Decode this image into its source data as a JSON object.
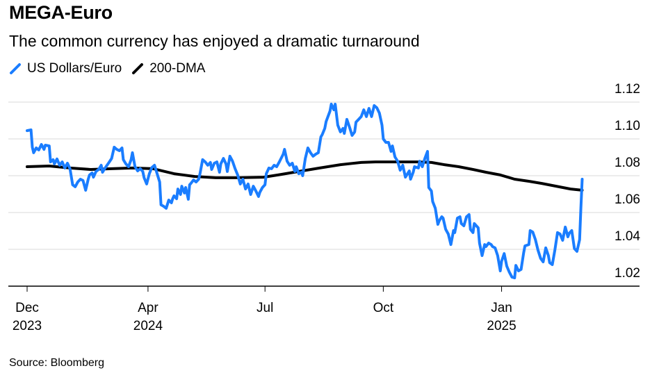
{
  "header": {
    "title": "MEGA-Euro",
    "subtitle": "The common currency has enjoyed a dramatic turnaround"
  },
  "legend": [
    {
      "label": "US Dollars/Euro",
      "icon": "line-swatch-icon",
      "color": "#1a7dff"
    },
    {
      "label": "200-DMA",
      "icon": "line-swatch-icon",
      "color": "#000000"
    }
  ],
  "footer": {
    "source": "Source: Bloomberg"
  },
  "chart_data": {
    "type": "line",
    "title": "MEGA-Euro",
    "subtitle": "The common currency has enjoyed a dramatic turnaround",
    "xlabel": "",
    "ylabel": "",
    "x_unit": "days since 2023-12-01 (approx.)",
    "ylim": [
      1.02,
      1.12
    ],
    "yticks": [
      "1.02",
      "1.04",
      "1.06",
      "1.08",
      "1.10",
      "1.12"
    ],
    "ytick_values": [
      1.02,
      1.04,
      1.06,
      1.08,
      1.1,
      1.12
    ],
    "xlim": [
      -14,
      470
    ],
    "xticks": [
      {
        "day": 0,
        "line1": "Dec",
        "line2": "2023"
      },
      {
        "day": 93,
        "line1": "Apr",
        "line2": "2024"
      },
      {
        "day": 183,
        "line1": "Jul",
        "line2": ""
      },
      {
        "day": 274,
        "line1": "Oct",
        "line2": ""
      },
      {
        "day": 365,
        "line1": "Jan",
        "line2": "2025"
      }
    ],
    "grid": true,
    "legend_position": "top-left",
    "source": "Bloomberg",
    "series": [
      {
        "name": "US Dollars/Euro",
        "color": "#1a7dff",
        "points": [
          [
            0,
            1.1045
          ],
          [
            3,
            1.1049
          ],
          [
            4,
            1.0955
          ],
          [
            5,
            1.0925
          ],
          [
            7,
            1.0951
          ],
          [
            9,
            1.094
          ],
          [
            11,
            1.097
          ],
          [
            13,
            1.0943
          ],
          [
            14,
            1.0966
          ],
          [
            17,
            1.0962
          ],
          [
            18,
            1.0875
          ],
          [
            20,
            1.0887
          ],
          [
            21,
            1.0864
          ],
          [
            23,
            1.0891
          ],
          [
            25,
            1.0857
          ],
          [
            27,
            1.0875
          ],
          [
            29,
            1.0842
          ],
          [
            31,
            1.0868
          ],
          [
            33,
            1.0838
          ],
          [
            35,
            1.0751
          ],
          [
            37,
            1.074
          ],
          [
            39,
            1.0766
          ],
          [
            41,
            1.0781
          ],
          [
            43,
            1.0774
          ],
          [
            45,
            1.0721
          ],
          [
            47,
            1.0781
          ],
          [
            48,
            1.0804
          ],
          [
            50,
            1.0815
          ],
          [
            51,
            1.0792
          ],
          [
            53,
            1.0823
          ],
          [
            55,
            1.0834
          ],
          [
            57,
            1.0857
          ],
          [
            58,
            1.0819
          ],
          [
            60,
            1.0842
          ],
          [
            63,
            1.0872
          ],
          [
            65,
            1.0894
          ],
          [
            67,
            1.0955
          ],
          [
            69,
            1.0943
          ],
          [
            71,
            1.0936
          ],
          [
            73,
            1.0951
          ],
          [
            74,
            1.0887
          ],
          [
            76,
            1.0864
          ],
          [
            78,
            1.0849
          ],
          [
            80,
            1.0887
          ],
          [
            81,
            1.0925
          ],
          [
            83,
            1.0849
          ],
          [
            85,
            1.0826
          ],
          [
            87,
            1.0838
          ],
          [
            89,
            1.0823
          ],
          [
            90,
            1.0789
          ],
          [
            92,
            1.0755
          ],
          [
            94,
            1.0811
          ],
          [
            96,
            1.0845
          ],
          [
            98,
            1.0857
          ],
          [
            100,
            1.0811
          ],
          [
            102,
            1.0766
          ],
          [
            103,
            1.0642
          ],
          [
            105,
            1.0634
          ],
          [
            107,
            1.0623
          ],
          [
            109,
            1.0668
          ],
          [
            111,
            1.0653
          ],
          [
            112,
            1.0675
          ],
          [
            113,
            1.0691
          ],
          [
            115,
            1.0675
          ],
          [
            116,
            1.0728
          ],
          [
            118,
            1.0698
          ],
          [
            119,
            1.0743
          ],
          [
            121,
            1.0706
          ],
          [
            122,
            1.0736
          ],
          [
            124,
            1.0672
          ],
          [
            125,
            1.0751
          ],
          [
            126,
            1.0758
          ],
          [
            128,
            1.0777
          ],
          [
            130,
            1.0766
          ],
          [
            132,
            1.0781
          ],
          [
            133,
            1.0811
          ],
          [
            135,
            1.0887
          ],
          [
            137,
            1.0875
          ],
          [
            139,
            1.0857
          ],
          [
            141,
            1.0872
          ],
          [
            142,
            1.0834
          ],
          [
            144,
            1.0868
          ],
          [
            146,
            1.0875
          ],
          [
            148,
            1.0819
          ],
          [
            149,
            1.0864
          ],
          [
            151,
            1.0894
          ],
          [
            153,
            1.0864
          ],
          [
            154,
            1.0823
          ],
          [
            156,
            1.0906
          ],
          [
            158,
            1.0879
          ],
          [
            160,
            1.0838
          ],
          [
            162,
            1.0804
          ],
          [
            164,
            1.0755
          ],
          [
            166,
            1.0781
          ],
          [
            168,
            1.0728
          ],
          [
            170,
            1.0755
          ],
          [
            172,
            1.0698
          ],
          [
            174,
            1.0743
          ],
          [
            176,
            1.0717
          ],
          [
            178,
            1.0687
          ],
          [
            179,
            1.0709
          ],
          [
            181,
            1.0736
          ],
          [
            183,
            1.0751
          ],
          [
            184,
            1.0811
          ],
          [
            186,
            1.0842
          ],
          [
            188,
            1.0838
          ],
          [
            190,
            1.0857
          ],
          [
            192,
            1.0849
          ],
          [
            194,
            1.0875
          ],
          [
            197,
            1.0917
          ],
          [
            198,
            1.0943
          ],
          [
            200,
            1.0879
          ],
          [
            202,
            1.0857
          ],
          [
            204,
            1.0868
          ],
          [
            206,
            1.0823
          ],
          [
            207,
            1.0849
          ],
          [
            209,
            1.0811
          ],
          [
            211,
            1.0819
          ],
          [
            212,
            1.08
          ],
          [
            214,
            1.0894
          ],
          [
            216,
            1.0951
          ],
          [
            218,
            1.0925
          ],
          [
            220,
            1.0906
          ],
          [
            222,
            1.0917
          ],
          [
            224,
            1.0925
          ],
          [
            226,
            1.1011
          ],
          [
            227,
            1.1023
          ],
          [
            229,
            1.1057
          ],
          [
            230,
            1.1094
          ],
          [
            233,
            1.1151
          ],
          [
            234,
            1.1189
          ],
          [
            236,
            1.1158
          ],
          [
            237,
            1.1189
          ],
          [
            239,
            1.1075
          ],
          [
            241,
            1.1038
          ],
          [
            243,
            1.1057
          ],
          [
            244,
            1.103
          ],
          [
            246,
            1.1106
          ],
          [
            248,
            1.1064
          ],
          [
            250,
            1.1019
          ],
          [
            252,
            1.1038
          ],
          [
            253,
            1.1091
          ],
          [
            255,
            1.1106
          ],
          [
            257,
            1.1121
          ],
          [
            259,
            1.1158
          ],
          [
            261,
            1.1121
          ],
          [
            263,
            1.1166
          ],
          [
            265,
            1.1121
          ],
          [
            267,
            1.1181
          ],
          [
            269,
            1.117
          ],
          [
            271,
            1.114
          ],
          [
            273,
            1.1075
          ],
          [
            274,
            1.1
          ],
          [
            276,
            1.0981
          ],
          [
            278,
            1.0981
          ],
          [
            280,
            1.0932
          ],
          [
            281,
            1.0962
          ],
          [
            283,
            1.0902
          ],
          [
            285,
            1.0879
          ],
          [
            287,
            1.083
          ],
          [
            289,
            1.0857
          ],
          [
            291,
            1.0792
          ],
          [
            294,
            1.0826
          ],
          [
            295,
            1.0781
          ],
          [
            297,
            1.0819
          ],
          [
            298,
            1.0849
          ],
          [
            301,
            1.0842
          ],
          [
            302,
            1.0879
          ],
          [
            304,
            1.0849
          ],
          [
            306,
            1.0894
          ],
          [
            308,
            1.0932
          ],
          [
            309,
            1.0736
          ],
          [
            311,
            1.0717
          ],
          [
            312,
            1.066
          ],
          [
            314,
            1.0623
          ],
          [
            316,
            1.0536
          ],
          [
            317,
            1.0555
          ],
          [
            319,
            1.0577
          ],
          [
            320,
            1.057
          ],
          [
            322,
            1.0509
          ],
          [
            324,
            1.0483
          ],
          [
            326,
            1.0426
          ],
          [
            328,
            1.0502
          ],
          [
            329,
            1.0491
          ],
          [
            331,
            1.057
          ],
          [
            333,
            1.0577
          ],
          [
            334,
            1.054
          ],
          [
            336,
            1.0528
          ],
          [
            338,
            1.0577
          ],
          [
            340,
            1.0589
          ],
          [
            341,
            1.0509
          ],
          [
            343,
            1.0491
          ],
          [
            344,
            1.054
          ],
          [
            347,
            1.0517
          ],
          [
            348,
            1.0434
          ],
          [
            350,
            1.0366
          ],
          [
            352,
            1.0426
          ],
          [
            353,
            1.0415
          ],
          [
            355,
            1.0434
          ],
          [
            357,
            1.0426
          ],
          [
            358,
            1.0415
          ],
          [
            360,
            1.0408
          ],
          [
            362,
            1.0366
          ],
          [
            364,
            1.0283
          ],
          [
            365,
            1.0336
          ],
          [
            367,
            1.0377
          ],
          [
            369,
            1.0309
          ],
          [
            371,
            1.0275
          ],
          [
            373,
            1.0249
          ],
          [
            375,
            1.0245
          ],
          [
            376,
            1.0313
          ],
          [
            378,
            1.0283
          ],
          [
            380,
            1.0291
          ],
          [
            382,
            1.0381
          ],
          [
            383,
            1.0419
          ],
          [
            386,
            1.0426
          ],
          [
            387,
            1.0502
          ],
          [
            389,
            1.0494
          ],
          [
            391,
            1.0453
          ],
          [
            393,
            1.0396
          ],
          [
            395,
            1.0351
          ],
          [
            397,
            1.0332
          ],
          [
            399,
            1.0408
          ],
          [
            401,
            1.0366
          ],
          [
            402,
            1.0328
          ],
          [
            404,
            1.0317
          ],
          [
            406,
            1.0396
          ],
          [
            408,
            1.0491
          ],
          [
            410,
            1.0483
          ],
          [
            412,
            1.0449
          ],
          [
            414,
            1.0521
          ],
          [
            416,
            1.0468
          ],
          [
            417,
            1.0487
          ],
          [
            419,
            1.0502
          ],
          [
            421,
            1.0404
          ],
          [
            423,
            1.0389
          ],
          [
            425,
            1.0453
          ],
          [
            426,
            1.0623
          ],
          [
            427,
            1.0781
          ]
        ]
      },
      {
        "name": "200-DMA",
        "color": "#000000",
        "points": [
          [
            0,
            1.0849
          ],
          [
            17,
            1.0853
          ],
          [
            33,
            1.0842
          ],
          [
            49,
            1.0834
          ],
          [
            65,
            1.0838
          ],
          [
            81,
            1.0842
          ],
          [
            97,
            1.0838
          ],
          [
            113,
            1.0811
          ],
          [
            129,
            1.0796
          ],
          [
            145,
            1.0789
          ],
          [
            161,
            1.0789
          ],
          [
            182,
            1.0792
          ],
          [
            193,
            1.0804
          ],
          [
            209,
            1.0823
          ],
          [
            225,
            1.0842
          ],
          [
            241,
            1.086
          ],
          [
            257,
            1.0872
          ],
          [
            268,
            1.0875
          ],
          [
            284,
            1.0875
          ],
          [
            300,
            1.0875
          ],
          [
            311,
            1.0872
          ],
          [
            321,
            1.086
          ],
          [
            332,
            1.0849
          ],
          [
            343,
            1.0834
          ],
          [
            353,
            1.0819
          ],
          [
            364,
            1.0804
          ],
          [
            375,
            1.0781
          ],
          [
            386,
            1.077
          ],
          [
            396,
            1.0758
          ],
          [
            407,
            1.0743
          ],
          [
            418,
            1.0728
          ],
          [
            427,
            1.0721
          ]
        ]
      }
    ]
  }
}
